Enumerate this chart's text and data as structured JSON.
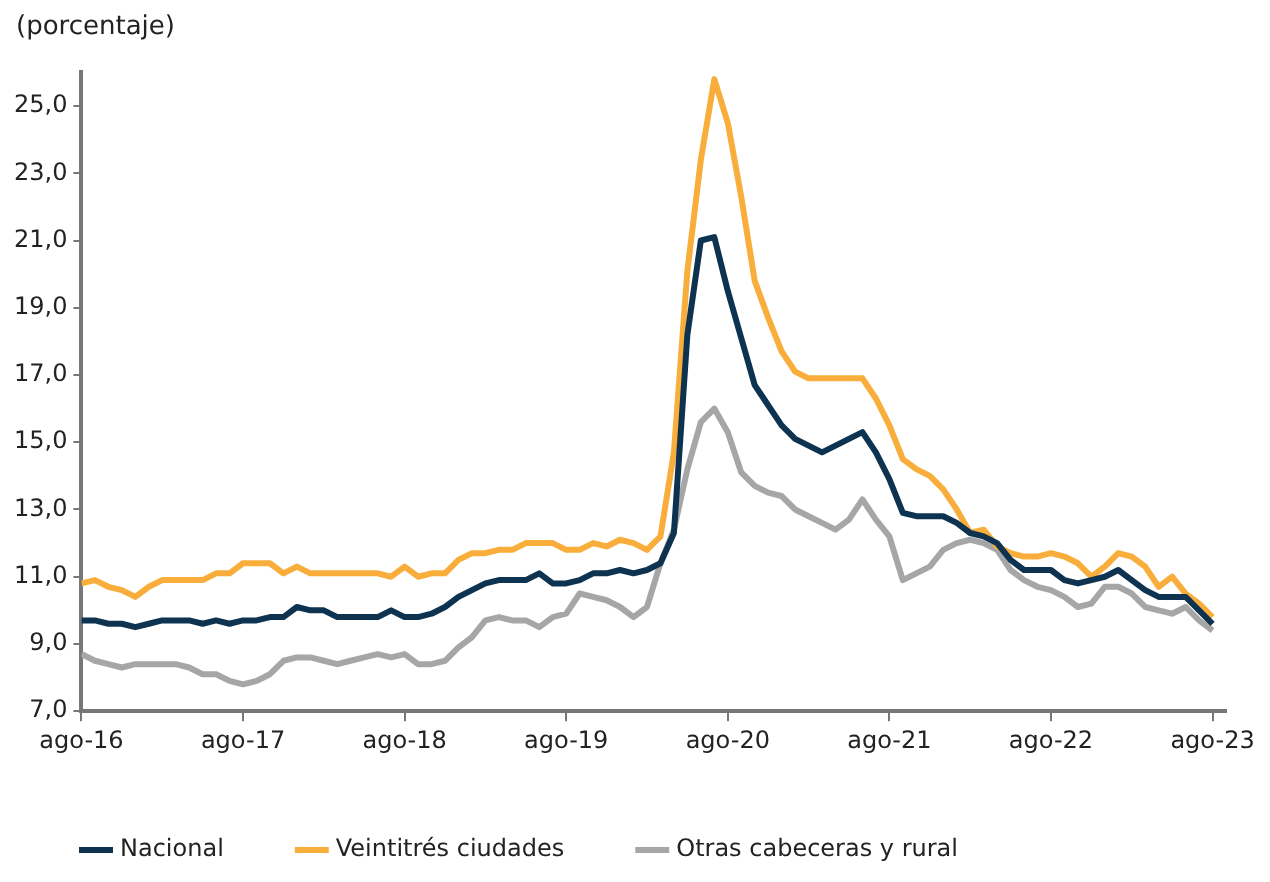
{
  "chart_data": {
    "type": "line",
    "ylabel": "(porcentaje)",
    "x": [
      "2016-08",
      "2016-09",
      "2016-10",
      "2016-11",
      "2016-12",
      "2017-01",
      "2017-02",
      "2017-03",
      "2017-04",
      "2017-05",
      "2017-06",
      "2017-07",
      "2017-08",
      "2017-09",
      "2017-10",
      "2017-11",
      "2017-12",
      "2018-01",
      "2018-02",
      "2018-03",
      "2018-04",
      "2018-05",
      "2018-06",
      "2018-07",
      "2018-08",
      "2018-09",
      "2018-10",
      "2018-11",
      "2018-12",
      "2019-01",
      "2019-02",
      "2019-03",
      "2019-04",
      "2019-05",
      "2019-06",
      "2019-07",
      "2019-08",
      "2019-09",
      "2019-10",
      "2019-11",
      "2019-12",
      "2020-01",
      "2020-02",
      "2020-03",
      "2020-04",
      "2020-05",
      "2020-06",
      "2020-07",
      "2020-08",
      "2020-09",
      "2020-10",
      "2020-11",
      "2020-12",
      "2021-01",
      "2021-02",
      "2021-03",
      "2021-04",
      "2021-05",
      "2021-06",
      "2021-07",
      "2021-08",
      "2021-09",
      "2021-10",
      "2021-11",
      "2021-12",
      "2022-01",
      "2022-02",
      "2022-03",
      "2022-04",
      "2022-05",
      "2022-06",
      "2022-07",
      "2022-08",
      "2022-09",
      "2022-10",
      "2022-11",
      "2022-12",
      "2023-01",
      "2023-02",
      "2023-03",
      "2023-04",
      "2023-05",
      "2023-06",
      "2023-07",
      "2023-08"
    ],
    "series": [
      {
        "name": "Nacional",
        "color": "#0d3350",
        "values": [
          9.7,
          9.7,
          9.6,
          9.6,
          9.5,
          9.6,
          9.7,
          9.7,
          9.7,
          9.6,
          9.7,
          9.6,
          9.7,
          9.7,
          9.8,
          9.8,
          10.1,
          10.0,
          10.0,
          9.8,
          9.8,
          9.8,
          9.8,
          10.0,
          9.8,
          9.8,
          9.9,
          10.1,
          10.4,
          10.6,
          10.8,
          10.9,
          10.9,
          10.9,
          11.1,
          10.8,
          10.8,
          10.9,
          11.1,
          11.1,
          11.2,
          11.1,
          11.2,
          11.4,
          12.3,
          18.2,
          21.0,
          21.1,
          19.5,
          18.1,
          16.7,
          16.1,
          15.5,
          15.1,
          14.9,
          14.7,
          14.9,
          15.1,
          15.3,
          14.7,
          13.9,
          12.9,
          12.8,
          12.8,
          12.8,
          12.6,
          12.3,
          12.2,
          12.0,
          11.5,
          11.2,
          11.2,
          11.2,
          10.9,
          10.8,
          10.9,
          11.0,
          11.2,
          10.9,
          10.6,
          10.4,
          10.4,
          10.4,
          10.0,
          9.6
        ]
      },
      {
        "name": "Veintitrés ciudades",
        "color": "#f9ae3c",
        "values": [
          10.8,
          10.9,
          10.7,
          10.6,
          10.4,
          10.7,
          10.9,
          10.9,
          10.9,
          10.9,
          11.1,
          11.1,
          11.4,
          11.4,
          11.4,
          11.1,
          11.3,
          11.1,
          11.1,
          11.1,
          11.1,
          11.1,
          11.1,
          11.0,
          11.3,
          11.0,
          11.1,
          11.1,
          11.5,
          11.7,
          11.7,
          11.8,
          11.8,
          12.0,
          12.0,
          12.0,
          11.8,
          11.8,
          12.0,
          11.9,
          12.1,
          12.0,
          11.8,
          12.2,
          14.7,
          20.1,
          23.4,
          25.8,
          24.5,
          22.3,
          19.8,
          18.7,
          17.7,
          17.1,
          16.9,
          16.9,
          16.9,
          16.9,
          16.9,
          16.3,
          15.5,
          14.5,
          14.2,
          14.0,
          13.6,
          13.0,
          12.3,
          12.4,
          11.9,
          11.7,
          11.6,
          11.6,
          11.7,
          11.6,
          11.4,
          11.0,
          11.3,
          11.7,
          11.6,
          11.3,
          10.7,
          11.0,
          10.5,
          10.2,
          9.8
        ]
      },
      {
        "name": "Otras cabeceras y rural",
        "color": "#a6a6a6",
        "values": [
          8.7,
          8.5,
          8.4,
          8.3,
          8.4,
          8.4,
          8.4,
          8.4,
          8.3,
          8.1,
          8.1,
          7.9,
          7.8,
          7.9,
          8.1,
          8.5,
          8.6,
          8.6,
          8.5,
          8.4,
          8.5,
          8.6,
          8.7,
          8.6,
          8.7,
          8.4,
          8.4,
          8.5,
          8.9,
          9.2,
          9.7,
          9.8,
          9.7,
          9.7,
          9.5,
          9.8,
          9.9,
          10.5,
          10.4,
          10.3,
          10.1,
          9.8,
          10.1,
          11.4,
          12.4,
          14.2,
          15.6,
          16.0,
          15.3,
          14.1,
          13.7,
          13.5,
          13.4,
          13.0,
          12.8,
          12.6,
          12.4,
          12.7,
          13.3,
          12.7,
          12.2,
          10.9,
          11.1,
          11.3,
          11.8,
          12.0,
          12.1,
          12.0,
          11.8,
          11.2,
          10.9,
          10.7,
          10.6,
          10.4,
          10.1,
          10.2,
          10.7,
          10.7,
          10.5,
          10.1,
          10.0,
          9.9,
          10.1,
          9.7,
          9.4
        ]
      }
    ],
    "xlim": [
      "2016-08",
      "2023-09"
    ],
    "xticks": [
      {
        "value": "2016-08",
        "label": "ago-16"
      },
      {
        "value": "2017-08",
        "label": "ago-17"
      },
      {
        "value": "2018-08",
        "label": "ago-18"
      },
      {
        "value": "2019-08",
        "label": "ago-19"
      },
      {
        "value": "2020-08",
        "label": "ago-20"
      },
      {
        "value": "2021-08",
        "label": "ago-21"
      },
      {
        "value": "2022-08",
        "label": "ago-22"
      },
      {
        "value": "2023-08",
        "label": "ago-23"
      }
    ],
    "ylim": [
      7,
      26
    ],
    "yticks": [
      {
        "value": 7,
        "label": "7,0"
      },
      {
        "value": 9,
        "label": "9,0"
      },
      {
        "value": 11,
        "label": "11,0"
      },
      {
        "value": 13,
        "label": "13,0"
      },
      {
        "value": 15,
        "label": "15,0"
      },
      {
        "value": 17,
        "label": "17,0"
      },
      {
        "value": 19,
        "label": "19,0"
      },
      {
        "value": 21,
        "label": "21,0"
      },
      {
        "value": 23,
        "label": "23,0"
      },
      {
        "value": 25,
        "label": "25,0"
      }
    ],
    "grid": false,
    "legend": "bottom",
    "marker": "none",
    "line_style": "solid"
  }
}
